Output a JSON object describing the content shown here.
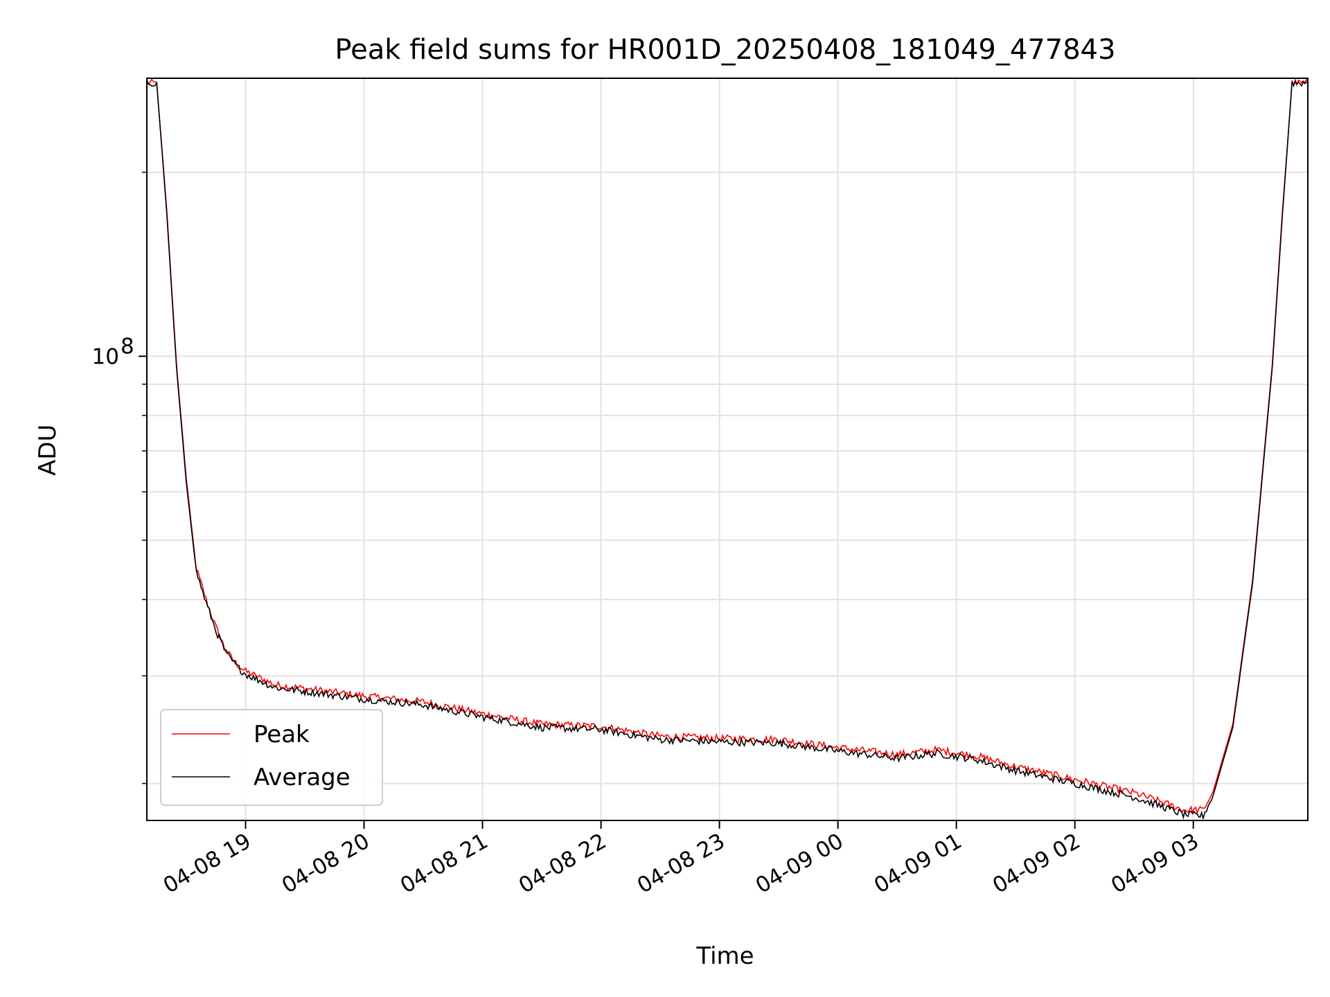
{
  "chart_data": {
    "type": "line",
    "title": "Peak field sums for HR001D_20250408_181049_477843",
    "xlabel": "Time",
    "ylabel": "ADU",
    "y_scale": "log",
    "x_ticks": [
      "04-08 19",
      "04-08 20",
      "04-08 21",
      "04-08 22",
      "04-08 23",
      "04-09 00",
      "04-09 01",
      "04-09 02",
      "04-09 03"
    ],
    "y_major_tick": {
      "base": "10",
      "exponent": "8",
      "value": 100000000
    },
    "xlim": [
      "2025-04-08 18:10",
      "2025-04-09 03:58"
    ],
    "ylim": [
      17400000,
      285000000
    ],
    "grid": true,
    "legend_position": "lower-left",
    "series": [
      {
        "name": "Peak",
        "color": "#ff0000",
        "x": [
          "2025-04-08 18:10",
          "2025-04-08 18:15",
          "2025-04-08 18:20",
          "2025-04-08 18:25",
          "2025-04-08 18:30",
          "2025-04-08 18:35",
          "2025-04-08 18:40",
          "2025-04-08 18:45",
          "2025-04-08 18:50",
          "2025-04-08 18:55",
          "2025-04-08 19:00",
          "2025-04-08 19:15",
          "2025-04-08 19:30",
          "2025-04-08 20:00",
          "2025-04-08 20:30",
          "2025-04-08 21:00",
          "2025-04-08 21:30",
          "2025-04-08 22:00",
          "2025-04-08 22:30",
          "2025-04-08 23:00",
          "2025-04-08 23:30",
          "2025-04-09 00:00",
          "2025-04-09 00:30",
          "2025-04-09 00:50",
          "2025-04-09 01:10",
          "2025-04-09 01:30",
          "2025-04-09 02:00",
          "2025-04-09 02:30",
          "2025-04-09 02:45",
          "2025-04-09 02:55",
          "2025-04-09 03:05",
          "2025-04-09 03:10",
          "2025-04-09 03:20",
          "2025-04-09 03:30",
          "2025-04-09 03:40",
          "2025-04-09 03:45",
          "2025-04-09 03:50",
          "2025-04-09 03:58"
        ],
        "y": [
          280000000,
          280000000,
          175000000,
          97000000,
          63000000,
          45000000,
          40000000,
          36000000,
          33000000,
          31500000,
          30500000,
          29000000,
          28600000,
          27800000,
          27200000,
          26000000,
          25000000,
          24800000,
          23900000,
          23700000,
          23600000,
          22900000,
          22300000,
          22700000,
          22200000,
          21300000,
          20300000,
          19300000,
          18600000,
          18100000,
          18100000,
          19400000,
          25000000,
          43000000,
          97000000,
          170000000,
          280000000,
          280000000
        ]
      },
      {
        "name": "Average",
        "color": "#000000",
        "x": [
          "2025-04-08 18:10",
          "2025-04-08 18:15",
          "2025-04-08 18:20",
          "2025-04-08 18:25",
          "2025-04-08 18:30",
          "2025-04-08 18:35",
          "2025-04-08 18:40",
          "2025-04-08 18:45",
          "2025-04-08 18:50",
          "2025-04-08 18:55",
          "2025-04-08 19:00",
          "2025-04-08 19:15",
          "2025-04-08 19:30",
          "2025-04-08 20:00",
          "2025-04-08 20:30",
          "2025-04-08 21:00",
          "2025-04-08 21:30",
          "2025-04-08 22:00",
          "2025-04-08 22:30",
          "2025-04-08 23:00",
          "2025-04-08 23:30",
          "2025-04-09 00:00",
          "2025-04-09 00:30",
          "2025-04-09 00:50",
          "2025-04-09 01:10",
          "2025-04-09 01:30",
          "2025-04-09 02:00",
          "2025-04-09 02:30",
          "2025-04-09 02:45",
          "2025-04-09 02:55",
          "2025-04-09 03:05",
          "2025-04-09 03:10",
          "2025-04-09 03:20",
          "2025-04-09 03:30",
          "2025-04-09 03:40",
          "2025-04-09 03:45",
          "2025-04-09 03:50",
          "2025-04-09 03:58"
        ],
        "y": [
          280000000,
          280000000,
          173000000,
          96000000,
          62000000,
          44500000,
          39500000,
          35600000,
          32700000,
          31200000,
          30200000,
          28700000,
          28300000,
          27500000,
          26900000,
          25700000,
          24700000,
          24500000,
          23600000,
          23400000,
          23300000,
          22600000,
          22000000,
          22400000,
          21900000,
          21000000,
          20000000,
          19000000,
          18300000,
          17800000,
          17700000,
          19100000,
          24700000,
          42500000,
          96000000,
          168000000,
          280000000,
          280000000
        ]
      }
    ]
  }
}
